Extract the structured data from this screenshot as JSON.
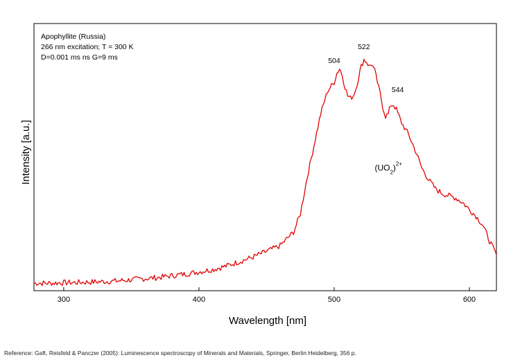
{
  "chart_data": {
    "type": "line",
    "title_lines": [
      "Apophyllite (Russia)",
      "266 nm excitation; T = 300 K",
      "D=0.001 ms ns G=9 ms"
    ],
    "xlabel": "Wavelength [nm]",
    "ylabel": "Intensity [a.u.]",
    "xlim": [
      278,
      620
    ],
    "ylim": [
      0,
      1
    ],
    "x_ticks": [
      300,
      400,
      500,
      600
    ],
    "y_ticks": [],
    "grid": false,
    "series_color": "#e00000",
    "annotations": [
      {
        "text": "504",
        "x": 500,
        "y": 0.985
      },
      {
        "text": "522",
        "x": 522,
        "y": 1.045
      },
      {
        "text": "544",
        "x": 547,
        "y": 0.857
      }
    ],
    "species_label": {
      "base": "(UO",
      "sub": "2",
      "close": ")",
      "sup": "2+",
      "x": 530,
      "y": 0.51
    },
    "series": [
      {
        "x": [
          278,
          290,
          300,
          310,
          320,
          330,
          340,
          350,
          360,
          370,
          380,
          390,
          400,
          410,
          420,
          430,
          440,
          450,
          460,
          470,
          475,
          480,
          485,
          490,
          495,
          500,
          502,
          504,
          506,
          508,
          510,
          512,
          514,
          516,
          518,
          520,
          522,
          524,
          526,
          528,
          530,
          532,
          534,
          536,
          538,
          540,
          542,
          544,
          546,
          548,
          550,
          555,
          560,
          565,
          570,
          575,
          580,
          585,
          590,
          595,
          600,
          605,
          610,
          615,
          620
        ],
        "y": [
          0.015,
          0.015,
          0.017,
          0.018,
          0.02,
          0.022,
          0.025,
          0.03,
          0.035,
          0.04,
          0.048,
          0.055,
          0.065,
          0.075,
          0.09,
          0.11,
          0.13,
          0.155,
          0.18,
          0.24,
          0.32,
          0.48,
          0.62,
          0.76,
          0.86,
          0.9,
          0.94,
          0.96,
          0.93,
          0.88,
          0.84,
          0.83,
          0.84,
          0.87,
          0.92,
          0.97,
          1.0,
          0.99,
          0.97,
          0.98,
          0.95,
          0.9,
          0.85,
          0.79,
          0.75,
          0.76,
          0.8,
          0.8,
          0.78,
          0.75,
          0.72,
          0.67,
          0.6,
          0.52,
          0.47,
          0.43,
          0.41,
          0.4,
          0.39,
          0.37,
          0.34,
          0.31,
          0.27,
          0.2,
          0.14
        ]
      }
    ],
    "reference": "Reference: Gaft, Reisfeld & Panczer (2005): Luminescence spectroscopy of Minerals and Materials, Springer, Berlin Heidelberg, 356 p."
  }
}
